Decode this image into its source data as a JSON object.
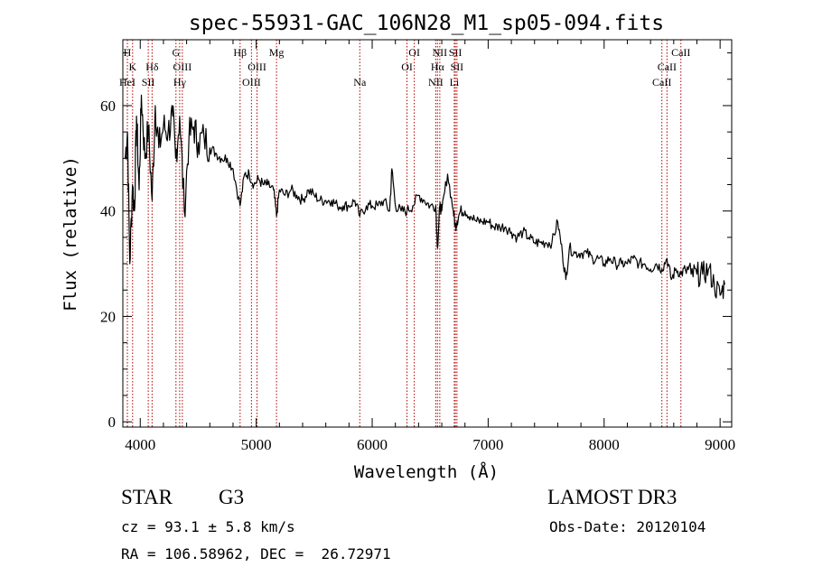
{
  "chart_data": {
    "type": "line",
    "title": "spec-55931-GAC_106N28_M1_sp05-094.fits",
    "xlabel": "Wavelength (Å)",
    "ylabel": "Flux (relative)",
    "xlim": [
      3850,
      9100
    ],
    "ylim": [
      -1,
      72.5
    ],
    "x_ticks": [
      4000,
      5000,
      6000,
      7000,
      8000,
      9000
    ],
    "x_tick_labels": [
      "4000",
      "5000",
      "6000",
      "7000",
      "8000",
      "9000"
    ],
    "y_ticks": [
      0,
      20,
      40,
      60
    ],
    "y_tick_labels": [
      "0",
      "20",
      "40",
      "60"
    ],
    "line_color": "#000000",
    "marker_color": "#b00000",
    "spectrum": {
      "x": [
        3870,
        3890,
        3910,
        3933,
        3950,
        3968,
        3990,
        4010,
        4040,
        4070,
        4102,
        4130,
        4160,
        4200,
        4240,
        4280,
        4305,
        4340,
        4380,
        4420,
        4460,
        4500,
        4550,
        4600,
        4650,
        4700,
        4750,
        4800,
        4861,
        4900,
        4940,
        4980,
        5020,
        5060,
        5100,
        5150,
        5175,
        5200,
        5250,
        5300,
        5350,
        5400,
        5450,
        5500,
        5550,
        5600,
        5650,
        5700,
        5750,
        5800,
        5850,
        5893,
        5950,
        6000,
        6050,
        6100,
        6150,
        6170,
        6200,
        6250,
        6300,
        6350,
        6400,
        6450,
        6500,
        6548,
        6563,
        6583,
        6600,
        6650,
        6700,
        6717,
        6731,
        6760,
        6800,
        6850,
        6900,
        6950,
        7000,
        7050,
        7100,
        7150,
        7200,
        7250,
        7300,
        7350,
        7400,
        7450,
        7500,
        7550,
        7600,
        7640,
        7670,
        7700,
        7750,
        7800,
        7850,
        7900,
        7950,
        8000,
        8050,
        8100,
        8150,
        8200,
        8250,
        8300,
        8350,
        8400,
        8450,
        8498,
        8542,
        8580,
        8620,
        8662,
        8700,
        8750,
        8800,
        8850,
        8900,
        8950,
        9000,
        9040
      ],
      "y": [
        50,
        55,
        30,
        45,
        40,
        58,
        44,
        62,
        50,
        56,
        42,
        60,
        52,
        56,
        55,
        58,
        50,
        58,
        40,
        54,
        56,
        53,
        54,
        52,
        51,
        50,
        50,
        48,
        41,
        47,
        47,
        45,
        46,
        45,
        45,
        44,
        39,
        44,
        43,
        44,
        43,
        42,
        44,
        43,
        42,
        42,
        42,
        41,
        41,
        41,
        42,
        39,
        41,
        41,
        41,
        42,
        40,
        48,
        41,
        40,
        40,
        41,
        43,
        42,
        41,
        41,
        33,
        41,
        40,
        47,
        40,
        37,
        38,
        40,
        40,
        39,
        38,
        38,
        38,
        37,
        37,
        37,
        36,
        35,
        36,
        35,
        34,
        34,
        34,
        34,
        38,
        32,
        27,
        33,
        32,
        32,
        32,
        31,
        31,
        30,
        31,
        30,
        30,
        30,
        31,
        30,
        30,
        29,
        30,
        29,
        31,
        27,
        29,
        28,
        29,
        28,
        28,
        28,
        29,
        26,
        24,
        26
      ]
    },
    "line_markers": [
      {
        "label": "H",
        "wavelength": 3889,
        "row": 1
      },
      {
        "label": "K",
        "wavelength": 3934,
        "row": 2
      },
      {
        "label": "Hδ",
        "wavelength": 4102,
        "row": 2
      },
      {
        "label": "HeI",
        "wavelength": 3889,
        "row": 3
      },
      {
        "label": "SII",
        "wavelength": 4069,
        "row": 3
      },
      {
        "label": "G",
        "wavelength": 4308,
        "row": 1
      },
      {
        "label": "OIII",
        "wavelength": 4363,
        "row": 2
      },
      {
        "label": "Hγ",
        "wavelength": 4340,
        "row": 3
      },
      {
        "label": "Hβ",
        "wavelength": 4861,
        "row": 1
      },
      {
        "label": "OIII",
        "wavelength": 5007,
        "row": 2
      },
      {
        "label": "OIII",
        "wavelength": 4959,
        "row": 3
      },
      {
        "label": "Mg",
        "wavelength": 5175,
        "row": 1
      },
      {
        "label": "Na",
        "wavelength": 5893,
        "row": 3
      },
      {
        "label": "OI",
        "wavelength": 6363,
        "row": 1
      },
      {
        "label": "OI",
        "wavelength": 6300,
        "row": 2
      },
      {
        "label": "NII",
        "wavelength": 6583,
        "row": 1
      },
      {
        "label": "SII",
        "wavelength": 6717,
        "row": 1
      },
      {
        "label": "Hα",
        "wavelength": 6563,
        "row": 2
      },
      {
        "label": "SII",
        "wavelength": 6731,
        "row": 2
      },
      {
        "label": "NII",
        "wavelength": 6548,
        "row": 3
      },
      {
        "label": "Li",
        "wavelength": 6708,
        "row": 3
      },
      {
        "label": "CaII",
        "wavelength": 8662,
        "row": 1
      },
      {
        "label": "CaII",
        "wavelength": 8542,
        "row": 2
      },
      {
        "label": "CaII",
        "wavelength": 8498,
        "row": 3
      }
    ]
  },
  "info": {
    "object_class": "STAR",
    "subclass": "G3",
    "survey": "LAMOST DR3",
    "redshift": "cz = 93.1 ± 5.8 km/s",
    "obs_date": "Obs-Date: 20120104",
    "coords": "RA = 106.58962, DEC =  26.72971"
  }
}
